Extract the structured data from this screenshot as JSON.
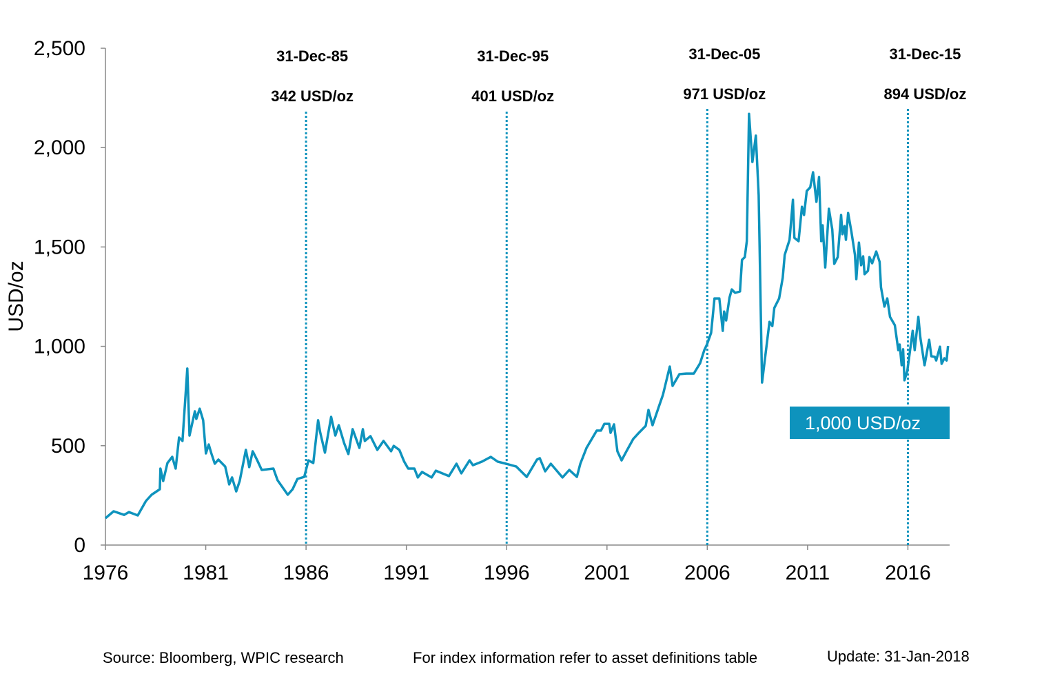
{
  "chart_data": {
    "type": "line",
    "title": "",
    "xlabel": "",
    "ylabel": "USD/oz",
    "xlim": [
      1976,
      2018.08
    ],
    "ylim": [
      0,
      2500
    ],
    "x_ticks": [
      1976,
      1981,
      1986,
      1991,
      1996,
      2001,
      2006,
      2011,
      2016
    ],
    "x_tick_labels": [
      "1976",
      "1981",
      "1986",
      "1991",
      "1996",
      "2001",
      "2006",
      "2011",
      "2016"
    ],
    "y_ticks": [
      0,
      500,
      1000,
      1500,
      2000,
      2500
    ],
    "y_tick_labels": [
      "0",
      "500",
      "1,000",
      "1,500",
      "2,000",
      "2,500"
    ],
    "grid": false,
    "line_color": "#0E93BD",
    "series": [
      {
        "points": [
          [
            1976.0,
            135
          ],
          [
            1976.41,
            170
          ],
          [
            1976.93,
            152
          ],
          [
            1977.17,
            166
          ],
          [
            1977.61,
            149
          ],
          [
            1978.02,
            222
          ],
          [
            1978.3,
            253
          ],
          [
            1978.71,
            281
          ],
          [
            1978.74,
            385
          ],
          [
            1978.88,
            322
          ],
          [
            1979.09,
            413
          ],
          [
            1979.33,
            444
          ],
          [
            1979.5,
            385
          ],
          [
            1979.67,
            541
          ],
          [
            1979.84,
            524
          ],
          [
            1980.08,
            888
          ],
          [
            1980.19,
            551
          ],
          [
            1980.46,
            673
          ],
          [
            1980.53,
            635
          ],
          [
            1980.7,
            686
          ],
          [
            1980.87,
            628
          ],
          [
            1981.01,
            461
          ],
          [
            1981.15,
            506
          ],
          [
            1981.28,
            461
          ],
          [
            1981.45,
            409
          ],
          [
            1981.63,
            430
          ],
          [
            1981.97,
            395
          ],
          [
            1982.17,
            305
          ],
          [
            1982.31,
            340
          ],
          [
            1982.52,
            270
          ],
          [
            1982.69,
            322
          ],
          [
            1983.0,
            479
          ],
          [
            1983.17,
            392
          ],
          [
            1983.34,
            472
          ],
          [
            1983.55,
            430
          ],
          [
            1983.79,
            378
          ],
          [
            1984.37,
            385
          ],
          [
            1984.58,
            326
          ],
          [
            1985.09,
            253
          ],
          [
            1985.33,
            281
          ],
          [
            1985.57,
            333
          ],
          [
            1985.91,
            343
          ],
          [
            1986.12,
            426
          ],
          [
            1986.36,
            413
          ],
          [
            1986.6,
            628
          ],
          [
            1986.7,
            569
          ],
          [
            1986.94,
            465
          ],
          [
            1987.05,
            530
          ],
          [
            1987.25,
            645
          ],
          [
            1987.46,
            551
          ],
          [
            1987.63,
            603
          ],
          [
            1987.9,
            513
          ],
          [
            1988.11,
            458
          ],
          [
            1988.32,
            583
          ],
          [
            1988.66,
            489
          ],
          [
            1988.83,
            583
          ],
          [
            1988.93,
            524
          ],
          [
            1989.21,
            548
          ],
          [
            1989.55,
            479
          ],
          [
            1989.86,
            524
          ],
          [
            1990.24,
            472
          ],
          [
            1990.37,
            499
          ],
          [
            1990.65,
            479
          ],
          [
            1990.89,
            420
          ],
          [
            1991.09,
            385
          ],
          [
            1991.4,
            385
          ],
          [
            1991.57,
            340
          ],
          [
            1991.78,
            368
          ],
          [
            1992.26,
            340
          ],
          [
            1992.47,
            374
          ],
          [
            1993.12,
            347
          ],
          [
            1993.5,
            409
          ],
          [
            1993.74,
            361
          ],
          [
            1994.15,
            426
          ],
          [
            1994.32,
            402
          ],
          [
            1994.77,
            420
          ],
          [
            1995.21,
            444
          ],
          [
            1995.55,
            420
          ],
          [
            1995.97,
            409
          ],
          [
            1996.48,
            395
          ],
          [
            1997.0,
            343
          ],
          [
            1997.51,
            430
          ],
          [
            1997.65,
            437
          ],
          [
            1997.92,
            371
          ],
          [
            1998.2,
            409
          ],
          [
            1998.78,
            340
          ],
          [
            1999.12,
            378
          ],
          [
            1999.5,
            343
          ],
          [
            1999.67,
            409
          ],
          [
            1999.98,
            489
          ],
          [
            2000.49,
            576
          ],
          [
            2000.7,
            576
          ],
          [
            2000.87,
            610
          ],
          [
            2001.11,
            610
          ],
          [
            2001.18,
            565
          ],
          [
            2001.35,
            607
          ],
          [
            2001.52,
            472
          ],
          [
            2001.73,
            426
          ],
          [
            2001.97,
            472
          ],
          [
            2002.31,
            534
          ],
          [
            2002.59,
            565
          ],
          [
            2002.93,
            600
          ],
          [
            2003.07,
            680
          ],
          [
            2003.27,
            603
          ],
          [
            2003.62,
            707
          ],
          [
            2003.79,
            756
          ],
          [
            2004.13,
            898
          ],
          [
            2004.27,
            801
          ],
          [
            2004.61,
            860
          ],
          [
            2004.95,
            863
          ],
          [
            2005.33,
            863
          ],
          [
            2005.64,
            915
          ],
          [
            2005.85,
            981
          ],
          [
            2005.98,
            1009
          ],
          [
            2006.19,
            1068
          ],
          [
            2006.36,
            1241
          ],
          [
            2006.6,
            1241
          ],
          [
            2006.77,
            1078
          ],
          [
            2006.84,
            1175
          ],
          [
            2006.94,
            1130
          ],
          [
            2007.11,
            1245
          ],
          [
            2007.22,
            1286
          ],
          [
            2007.39,
            1269
          ],
          [
            2007.63,
            1276
          ],
          [
            2007.73,
            1435
          ],
          [
            2007.87,
            1449
          ],
          [
            2007.97,
            1529
          ],
          [
            2008.08,
            2170
          ],
          [
            2008.25,
            1928
          ],
          [
            2008.42,
            2060
          ],
          [
            2008.56,
            1761
          ],
          [
            2008.73,
            818
          ],
          [
            2009.1,
            1123
          ],
          [
            2009.24,
            1102
          ],
          [
            2009.34,
            1193
          ],
          [
            2009.58,
            1241
          ],
          [
            2009.76,
            1345
          ],
          [
            2009.86,
            1460
          ],
          [
            2010.1,
            1536
          ],
          [
            2010.27,
            1737
          ],
          [
            2010.34,
            1546
          ],
          [
            2010.55,
            1529
          ],
          [
            2010.72,
            1702
          ],
          [
            2010.82,
            1661
          ],
          [
            2010.96,
            1782
          ],
          [
            2011.13,
            1800
          ],
          [
            2011.27,
            1876
          ],
          [
            2011.44,
            1727
          ],
          [
            2011.57,
            1852
          ],
          [
            2011.68,
            1529
          ],
          [
            2011.75,
            1609
          ],
          [
            2011.88,
            1397
          ],
          [
            2012.06,
            1692
          ],
          [
            2012.23,
            1588
          ],
          [
            2012.33,
            1415
          ],
          [
            2012.5,
            1449
          ],
          [
            2012.67,
            1661
          ],
          [
            2012.74,
            1564
          ],
          [
            2012.84,
            1605
          ],
          [
            2012.91,
            1536
          ],
          [
            2013.02,
            1671
          ],
          [
            2013.19,
            1574
          ],
          [
            2013.36,
            1460
          ],
          [
            2013.43,
            1338
          ],
          [
            2013.56,
            1522
          ],
          [
            2013.67,
            1408
          ],
          [
            2013.77,
            1453
          ],
          [
            2013.84,
            1363
          ],
          [
            2014.01,
            1380
          ],
          [
            2014.08,
            1449
          ],
          [
            2014.22,
            1418
          ],
          [
            2014.42,
            1477
          ],
          [
            2014.59,
            1425
          ],
          [
            2014.66,
            1297
          ],
          [
            2014.83,
            1200
          ],
          [
            2014.97,
            1241
          ],
          [
            2015.11,
            1148
          ],
          [
            2015.35,
            1106
          ],
          [
            2015.52,
            981
          ],
          [
            2015.59,
            1009
          ],
          [
            2015.69,
            905
          ],
          [
            2015.76,
            985
          ],
          [
            2015.83,
            829
          ],
          [
            2015.97,
            877
          ],
          [
            2016.24,
            1078
          ],
          [
            2016.34,
            981
          ],
          [
            2016.52,
            1148
          ],
          [
            2016.62,
            1044
          ],
          [
            2016.83,
            905
          ],
          [
            2017.06,
            1033
          ],
          [
            2017.17,
            950
          ],
          [
            2017.34,
            947
          ],
          [
            2017.41,
            929
          ],
          [
            2017.6,
            998
          ],
          [
            2017.68,
            912
          ],
          [
            2017.82,
            940
          ],
          [
            2017.93,
            929
          ],
          [
            2018.0,
            1002
          ]
        ]
      }
    ],
    "annotations": [
      {
        "x": 1986,
        "date": "31-Dec-85",
        "value": "342 USD/oz"
      },
      {
        "x": 1996,
        "date": "31-Dec-95",
        "value": "401 USD/oz"
      },
      {
        "x": 2006,
        "date": "31-Dec-05",
        "value": "971 USD/oz"
      },
      {
        "x": 2016,
        "date": "31-Dec-15",
        "value": "894 USD/oz"
      }
    ],
    "callout": {
      "text": "1,000 USD/oz",
      "color": "#0E93BD"
    }
  },
  "footer": {
    "source": "Source: Bloomberg, WPIC research",
    "note": "For index information refer to asset definitions table",
    "update": "Update: 31-Jan-2018"
  }
}
